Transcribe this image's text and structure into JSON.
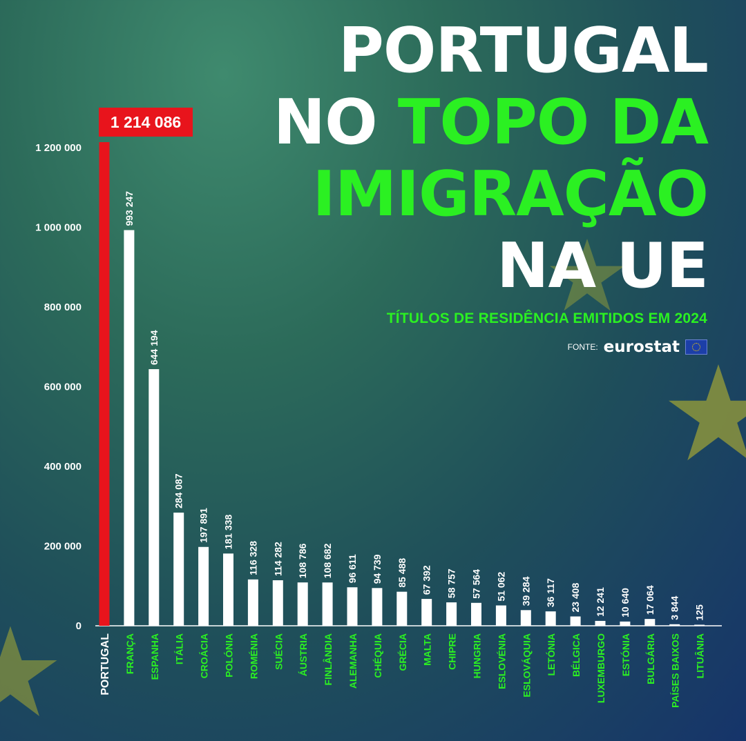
{
  "title": {
    "line1": "PORTUGAL",
    "line2a": "NO ",
    "line2b": "TOPO DA",
    "line3": "IMIGRAÇÃO",
    "line4": "NA UE"
  },
  "subtitle": "TÍTULOS DE RESIDÊNCIA EMITIDOS EM 2024",
  "source": {
    "label": "FONTE:",
    "logo_text": "eurostat"
  },
  "colors": {
    "highlight": "#e8141c",
    "bar": "#ffffff",
    "accent_green": "#2bf022"
  },
  "chart_data": {
    "type": "bar",
    "ylim": [
      0,
      1214086
    ],
    "yticks": [
      0,
      200000,
      400000,
      600000,
      800000,
      1000000,
      1200000
    ],
    "ytick_labels": [
      "0",
      "200 000",
      "400 000",
      "600 000",
      "800 000",
      "1 000 000",
      "1 200 000"
    ],
    "categories": [
      "PORTUGAL",
      "FRANÇA",
      "ESPANHA",
      "ITÁLIA",
      "CROÁCIA",
      "POLÓNIA",
      "ROMÉNIA",
      "SUÉCIA",
      "ÁUSTRIA",
      "FINLÂNDIA",
      "ALEMANHA",
      "CHÉQUIA",
      "GRÉCIA",
      "MALTA",
      "CHIPRE",
      "HUNGRIA",
      "ESLOVÉNIA",
      "ESLOVÁQUIA",
      "LETÓNIA",
      "BÉLGICA",
      "LUXEMBURGO",
      "ESTÓNIA",
      "BULGÁRIA",
      "PAÍSES BAIXOS",
      "LITUÂNIA"
    ],
    "values": [
      1214086,
      993247,
      644194,
      284087,
      197891,
      181338,
      116328,
      114282,
      108786,
      108682,
      96611,
      94739,
      85488,
      67392,
      58757,
      57564,
      51062,
      39284,
      36117,
      23408,
      12241,
      10640,
      17064,
      3844,
      125
    ],
    "value_labels": [
      "1 214 086",
      "993 247",
      "644 194",
      "284 087",
      "197 891",
      "181 338",
      "116 328",
      "114 282",
      "108 786",
      "108 682",
      "96 611",
      "94 739",
      "85 488",
      "67 392",
      "58 757",
      "57 564",
      "51 062",
      "39 284",
      "36 117",
      "23 408",
      "12 241",
      "10 640",
      "17 064",
      "3 844",
      "125"
    ],
    "highlight_index": 0,
    "grid": false
  }
}
